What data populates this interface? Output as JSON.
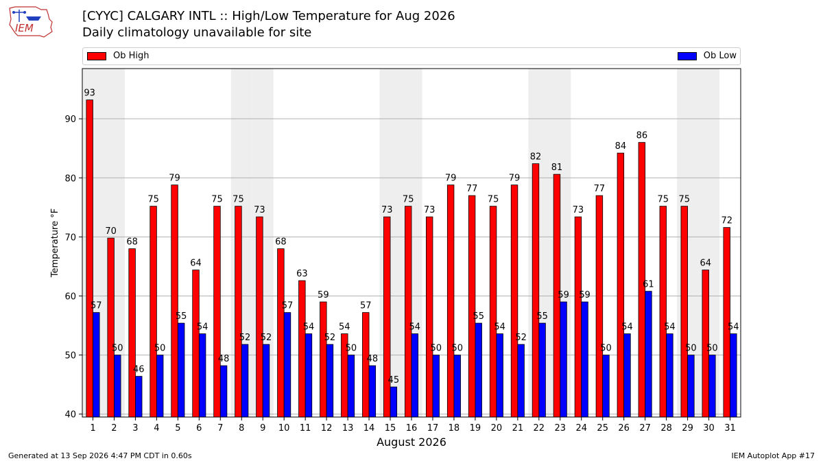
{
  "header": {
    "logo_text": "IEM",
    "title_line1": "[CYYC] CALGARY INTL :: High/Low Temperature for Aug 2026",
    "title_line2": "Daily climatology unavailable for site"
  },
  "footer": {
    "generated": "Generated at 13 Sep 2026 4:47 PM CDT in 0.60s",
    "app": "IEM Autoplot App #17"
  },
  "colors": {
    "high": "#ff0000",
    "low": "#0000ff",
    "weekend_band": "#eeeeee",
    "grid": "#b0b0b0"
  },
  "chart_data": {
    "type": "bar",
    "title": "[CYYC] CALGARY INTL :: High/Low Temperature for Aug 2026",
    "subtitle": "Daily climatology unavailable for site",
    "xlabel": "August 2026",
    "ylabel": "Temperature °F",
    "ylim": [
      39.5,
      98.5
    ],
    "yticks": [
      40,
      50,
      60,
      70,
      80,
      90
    ],
    "grid": true,
    "legend_placement": "top, above plot",
    "categories": [
      1,
      2,
      3,
      4,
      5,
      6,
      7,
      8,
      9,
      10,
      11,
      12,
      13,
      14,
      15,
      16,
      17,
      18,
      19,
      20,
      21,
      22,
      23,
      24,
      25,
      26,
      27,
      28,
      29,
      30,
      31
    ],
    "shaded_days": [
      1,
      2,
      8,
      9,
      15,
      16,
      22,
      23,
      29,
      30
    ],
    "series": [
      {
        "name": "Ob High",
        "color": "#ff0000",
        "values": [
          93,
          70,
          68,
          75,
          79,
          64,
          75,
          75,
          73,
          68,
          63,
          59,
          54,
          57,
          73,
          75,
          73,
          79,
          77,
          75,
          79,
          82,
          81,
          73,
          77,
          84,
          86,
          75,
          75,
          64,
          72
        ],
        "plotted": [
          93.2,
          69.8,
          68.0,
          75.2,
          78.8,
          64.4,
          75.2,
          75.2,
          73.4,
          68.0,
          62.6,
          59.0,
          53.6,
          57.2,
          73.4,
          75.2,
          73.4,
          78.8,
          77.0,
          75.2,
          78.8,
          82.4,
          80.6,
          73.4,
          77.0,
          84.2,
          86.0,
          75.2,
          75.2,
          64.4,
          71.6
        ]
      },
      {
        "name": "Ob Low",
        "color": "#0000ff",
        "values": [
          57,
          50,
          46,
          50,
          55,
          54,
          48,
          52,
          52,
          57,
          54,
          52,
          50,
          48,
          45,
          54,
          50,
          50,
          55,
          54,
          52,
          55,
          59,
          59,
          50,
          54,
          61,
          54,
          50,
          50,
          54
        ],
        "plotted": [
          57.2,
          50.0,
          46.4,
          50.0,
          55.4,
          53.6,
          48.2,
          51.8,
          51.8,
          57.2,
          53.6,
          51.8,
          50.0,
          48.2,
          44.6,
          53.6,
          50.0,
          50.0,
          55.4,
          53.6,
          51.8,
          55.4,
          59.0,
          59.0,
          50.0,
          53.6,
          60.8,
          53.6,
          50.0,
          50.0,
          53.6
        ]
      }
    ]
  }
}
